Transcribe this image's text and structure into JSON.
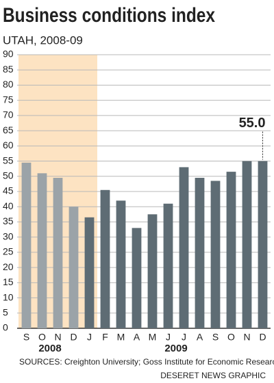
{
  "chart_data": {
    "type": "bar",
    "title": "Business conditions index",
    "subtitle": "UTAH, 2008-09",
    "categories": [
      "S",
      "O",
      "N",
      "D",
      "J",
      "F",
      "M",
      "A",
      "M",
      "J",
      "J",
      "A",
      "S",
      "O",
      "N",
      "D"
    ],
    "values": [
      54.5,
      51,
      49.5,
      40,
      36.5,
      45.5,
      42,
      33,
      37.5,
      41,
      53,
      49.5,
      48.5,
      51.5,
      55,
      55
    ],
    "groups": [
      {
        "label": "2008",
        "count": 4,
        "color": "#9ba3a8"
      },
      {
        "label": "2009",
        "count": 12,
        "color": "#5e6c74"
      }
    ],
    "highlight": {
      "first": 0,
      "last": 4,
      "color": "#fde3c2"
    },
    "annotation": {
      "label": "55.0",
      "index": 15
    },
    "ylim": [
      0,
      90
    ],
    "yticks": [
      0,
      5,
      10,
      15,
      20,
      25,
      30,
      35,
      40,
      45,
      50,
      55,
      60,
      65,
      70,
      75,
      80,
      85,
      90
    ],
    "grid": true,
    "source": "SOURCES: Creighton University; Goss Institute for Economic Research",
    "credit": "DESERET NEWS GRAPHIC"
  }
}
